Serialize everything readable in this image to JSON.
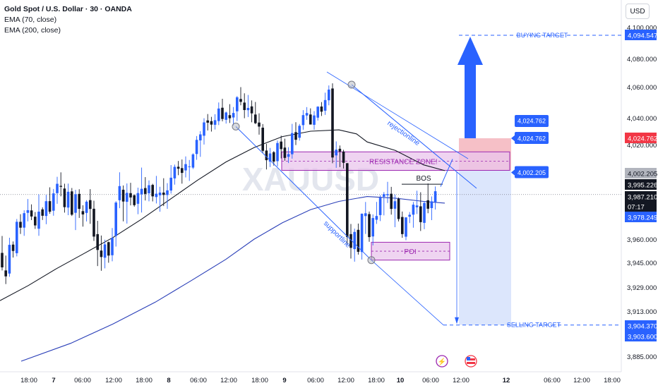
{
  "legend": {
    "symbol": "Gold Spot / U.S. Dollar · 30 · OANDA",
    "ema70": "EMA (70, close)",
    "ema200": "EMA (200, close)"
  },
  "currency_button": "USD",
  "watermark": "XAUUSD",
  "colors": {
    "up": "#2962ff",
    "down": "#131722",
    "ema70": "#131722",
    "ema200": "#2a3fb8",
    "zone_fill": "#e9c6ec",
    "zone_border": "#9c27b0",
    "annotation": "#2962ff",
    "red_box": "#f5b5bd",
    "blue_box": "#d6e2fb",
    "sell_label": "#2962ff",
    "red_label": "#f23645"
  },
  "chart_data": {
    "type": "candlestick",
    "title": "Gold Spot / U.S. Dollar · 30 · OANDA",
    "indicators": [
      "EMA (70, close)",
      "EMA (200, close)"
    ],
    "ylim": [
      3880,
      4110
    ],
    "y_ticks": [
      "4,100.000",
      "4,080.000",
      "4,060.000",
      "4,040.000",
      "4,020.000",
      "3,960.000",
      "3,945.000",
      "3,929.000",
      "3,913.000",
      "3,885.000"
    ],
    "x_ticks": [
      "18:00",
      "7",
      "06:00",
      "12:00",
      "18:00",
      "8",
      "06:00",
      "12:00",
      "18:00",
      "9",
      "06:00",
      "12:00",
      "18:00",
      "10",
      "06:00",
      "12:00",
      "12",
      "06:00",
      "12:00",
      "18:00"
    ],
    "price_labels": [
      {
        "text": "4,094.547",
        "value": 4094.547,
        "style": "blue"
      },
      {
        "text": "4,024.762",
        "value": 4024.762,
        "style": "red"
      },
      {
        "text": "4,002.205",
        "value": 4002.205,
        "style": "gray"
      },
      {
        "text": "3,995.226",
        "value": 3995.226,
        "style": "dark"
      },
      {
        "text": "3,987.210",
        "value": 3987.21,
        "style": "dark"
      },
      {
        "text": "07:17",
        "value": 3982.8,
        "style": "dark"
      },
      {
        "text": "3,978.249",
        "value": 3978.249,
        "style": "blue"
      },
      {
        "text": "3,904.370",
        "value": 3904.37,
        "style": "blue"
      },
      {
        "text": "3,903.600",
        "value": 3903.6,
        "style": "blue"
      }
    ],
    "candles": [
      [
        3951.14,
        3961.91,
        3939.8,
        3941.8
      ],
      [
        3939.8,
        3949.42,
        3930.98,
        3935.97
      ],
      [
        3937.8,
        3960.86,
        3935.71,
        3956.33
      ],
      [
        3956.49,
        3958.51,
        3948.15,
        3952.39
      ],
      [
        3950.95,
        3972.29,
        3948.91,
        3970.59
      ],
      [
        3970.56,
        3975.21,
        3963.16,
        3966.99
      ],
      [
        3967.02,
        3977.58,
        3962.03,
        3975.84
      ],
      [
        3976.03,
        3984.47,
        3970.84,
        3977.66
      ],
      [
        3977.52,
        3981.2,
        3971.63,
        3973.82
      ],
      [
        3973.69,
        3976.53,
        3966.24,
        3968.37
      ],
      [
        3966.36,
        3987.33,
        3962.03,
        3976.77
      ],
      [
        3978.14,
        3979.35,
        3971.69,
        3974.26
      ],
      [
        3974.13,
        3987.0,
        3969.11,
        3983.15
      ],
      [
        3983.17,
        3991.6,
        3975.48,
        3976.73
      ],
      [
        3977.33,
        3990.59,
        3974.29,
        3987.89
      ],
      [
        3988.03,
        3998.0,
        3981.55,
        3993.74
      ],
      [
        3992.49,
        4000.82,
        3986.12,
        3991.92
      ],
      [
        3990.86,
        3993.81,
        3976.18,
        3979.51
      ],
      [
        3979.24,
        3993.87,
        3974.62,
        3988.9
      ],
      [
        3989.13,
        3991.19,
        3974.12,
        3974.91
      ],
      [
        3976.07,
        3990.05,
        3965.54,
        3987.39
      ],
      [
        3987.6,
        3990.44,
        3972.93,
        3978.47
      ],
      [
        3977.07,
        3980.65,
        3967.64,
        3975.07
      ],
      [
        3975.99,
        3983.76,
        3970.79,
        3982.84
      ],
      [
        3983.78,
        3990.49,
        3969.34,
        3978.42
      ],
      [
        3978.53,
        3983.45,
        3958.89,
        3961.56
      ],
      [
        3963.05,
        3971.16,
        3942.64,
        3953.05
      ],
      [
        3952.65,
        3962.21,
        3939.6,
        3948.48
      ],
      [
        3948.03,
        3959.66,
        3941.16,
        3956.62
      ],
      [
        3958.06,
        3958.47,
        3944.8,
        3949.42
      ],
      [
        3949.63,
        3966.79,
        3945.76,
        3960.78
      ],
      [
        3961.93,
        3983.15,
        3955.22,
        3982.31
      ],
      [
        3983.72,
        4000.86,
        3978.89,
        3992.34
      ],
      [
        3990.13,
        3992.73,
        3970.86,
        3982.93
      ],
      [
        3982.76,
        3993.96,
        3969.49,
        3988.23
      ],
      [
        3988.05,
        3994.33,
        3980.58,
        3985.43
      ],
      [
        3986.75,
        3987.28,
        3979.8,
        3980.74
      ],
      [
        3981.56,
        3991.4,
        3975.2,
        3988.09
      ],
      [
        3987.35,
        4004.12,
        3976.24,
        3990.69
      ],
      [
        3991.14,
        3997.82,
        3983.59,
        3987.58
      ],
      [
        3987.97,
        3995.82,
        3983.08,
        3992.88
      ],
      [
        3993.06,
        3993.78,
        3983.01,
        3986.09
      ],
      [
        3985.67,
        3998.56,
        3981.77,
        3987.71
      ],
      [
        3986.76,
        3991.93,
        3976.71,
        3988.39
      ],
      [
        3988.38,
        3997.14,
        3980.17,
        3986.96
      ],
      [
        3986.92,
        3994.12,
        3978.51,
        3989.74
      ],
      [
        3989.64,
        4005.84,
        3987.81,
        3997.46
      ],
      [
        3997.04,
        4006.19,
        3993.23,
        4004.63
      ],
      [
        4004.7,
        4008.69,
        3998.99,
        4003.33
      ],
      [
        4003.75,
        4009.71,
        3993.84,
        4000.44
      ],
      [
        4002.16,
        4011.8,
        3997.64,
        4006.5
      ],
      [
        4004.93,
        4009.39,
        3995.5,
        4004.93
      ],
      [
        4004.12,
        4014.0,
        4003.13,
        4013.26
      ],
      [
        4013.51,
        4026.39,
        4009.5,
        4023.54
      ],
      [
        4023.16,
        4030.05,
        4011.55,
        4027.63
      ],
      [
        4026.63,
        4039.66,
        4020.06,
        4036.57
      ],
      [
        4038.04,
        4042.43,
        4030.56,
        4036.36
      ],
      [
        4037.52,
        4040.62,
        4029.73,
        4034.93
      ],
      [
        4034.79,
        4042.32,
        4031.25,
        4038.24
      ],
      [
        4037.56,
        4049.89,
        4034.59,
        4045.98
      ],
      [
        4046.49,
        4052.29,
        4037.35,
        4039.12
      ],
      [
        4038.51,
        4043.99,
        4035.71,
        4043.43
      ],
      [
        4041.71,
        4048.8,
        4036.15,
        4039.66
      ],
      [
        4040.22,
        4046.95,
        4034.32,
        4043.12
      ],
      [
        4044.19,
        4054.01,
        4037.61,
        4053.23
      ],
      [
        4052.12,
        4059.75,
        4048.04,
        4050.28
      ],
      [
        4049.81,
        4055.79,
        4039.69,
        4045.01
      ],
      [
        4044.91,
        4054.74,
        4040.51,
        4046.38
      ],
      [
        4047.36,
        4051.22,
        4036.65,
        4042.87
      ],
      [
        4042.11,
        4050.2,
        4035.31,
        4035.99
      ],
      [
        4036.46,
        4042.87,
        4027.45,
        4033.45
      ],
      [
        4032.64,
        4035.34,
        4014.46,
        4015.71
      ],
      [
        4015.89,
        4020.62,
        4002.83,
        4009.24
      ],
      [
        4008.24,
        4017.69,
        4004.51,
        4013.88
      ],
      [
        4014.76,
        4015.51,
        4005.51,
        4008.27
      ],
      [
        4008.57,
        4023.02,
        4004.94,
        4021.2
      ],
      [
        4022.28,
        4026.69,
        4010.47,
        4016.9
      ],
      [
        4017.96,
        4024.43,
        4008.87,
        4010.83
      ],
      [
        4011.58,
        4018.2,
        4007.27,
        4013.44
      ],
      [
        4013.35,
        4035.49,
        4010.3,
        4028.6
      ],
      [
        4029.29,
        4036.71,
        4019.68,
        4023.62
      ],
      [
        4025.12,
        4035.4,
        4022.97,
        4034.03
      ],
      [
        4034.54,
        4044.95,
        4031.09,
        4041.74
      ],
      [
        4041.46,
        4046.9,
        4038.5,
        4043.09
      ],
      [
        4042.13,
        4046.09,
        4034.95,
        4035.02
      ],
      [
        4034.77,
        4044.34,
        4031.09,
        4041.53
      ],
      [
        4040.1,
        4047.46,
        4037.96,
        4047.17
      ],
      [
        4047.27,
        4050.13,
        4041.18,
        4043.96
      ],
      [
        4044.58,
        4056.2,
        4041.88,
        4051.45
      ],
      [
        4051.29,
        4060.93,
        4048.08,
        4058.16
      ],
      [
        4058.89,
        4062.41,
        4007.13,
        4011.09
      ],
      [
        4012.55,
        4022.4,
        4003.96,
        4016.5
      ],
      [
        4017.12,
        4019.4,
        4004.45,
        4015.2
      ],
      [
        4015.16,
        4016.41,
        4003.52,
        4007.42
      ],
      [
        4007.12,
        4007.35,
        3956.2,
        3961.33
      ],
      [
        3963.08,
        3969.27,
        3947.49,
        3954.39
      ],
      [
        3953.6,
        3966.43,
        3945.49,
        3964.4
      ],
      [
        3965.69,
        3969.5,
        3950.05,
        3951.84
      ],
      [
        3951.71,
        3975.62,
        3946.83,
        3975.52
      ],
      [
        3974.07,
        3982.67,
        3963.17,
        3975.78
      ],
      [
        3975.27,
        3976.81,
        3958.3,
        3961.25
      ],
      [
        3961.64,
        3975.08,
        3955.99,
        3972.86
      ],
      [
        3971.82,
        3982.7,
        3969.3,
        3974.12
      ],
      [
        3974.67,
        3986.82,
        3971.01,
        3985.26
      ],
      [
        3985.89,
        3988.69,
        3974.49,
        3987.43
      ],
      [
        3986.75,
        3994.97,
        3982.05,
        3987.44
      ],
      [
        3987.68,
        3991.88,
        3974.96,
        3978.43
      ],
      [
        3978.56,
        3987.24,
        3967.29,
        3983.13
      ],
      [
        3984.57,
        3985.4,
        3970.81,
        3972.27
      ],
      [
        3973.51,
        3976.83,
        3960.84,
        3963.08
      ],
      [
        3961.5,
        3973.36,
        3959.29,
        3973.26
      ],
      [
        3973.7,
        3976.52,
        3969.79,
        3974.85
      ],
      [
        3974.92,
        3982.68,
        3966.98,
        3981.01
      ],
      [
        3979.42,
        3989.53,
        3975.33,
        3980.55
      ],
      [
        3980.01,
        3988.6,
        3964.98,
        3970.37
      ],
      [
        3969.93,
        3983.16,
        3966.07,
        3982.07
      ],
      [
        3983.71,
        3993.94,
        3975.8,
        3978.55
      ],
      [
        3978.91,
        3986.02,
        3971.6,
        3983.03
      ],
      [
        3982.66,
        3992.11,
        3978.05,
        3989.22
      ]
    ],
    "candle_x_start": 0,
    "candle_x_step": 5.2,
    "ema70": [
      [
        0,
        3920
      ],
      [
        40,
        3930
      ],
      [
        80,
        3941
      ],
      [
        120,
        3951
      ],
      [
        160,
        3961
      ],
      [
        200,
        3972
      ],
      [
        240,
        3984
      ],
      [
        280,
        3996
      ],
      [
        320,
        4008
      ],
      [
        360,
        4018
      ],
      [
        400,
        4026
      ],
      [
        440,
        4030
      ],
      [
        480,
        4031
      ],
      [
        505,
        4028
      ],
      [
        520,
        4022
      ],
      [
        560,
        4016
      ],
      [
        600,
        4006
      ],
      [
        630,
        4002
      ]
    ],
    "ema200": [
      [
        30,
        3877
      ],
      [
        100,
        3893
      ],
      [
        160,
        3905
      ],
      [
        220,
        3919
      ],
      [
        270,
        3933
      ],
      [
        320,
        3947
      ],
      [
        360,
        3960
      ],
      [
        400,
        3970
      ],
      [
        440,
        3978
      ],
      [
        480,
        3983
      ],
      [
        520,
        3986
      ],
      [
        560,
        3985
      ],
      [
        600,
        3983
      ],
      [
        630,
        3982
      ]
    ],
    "annotations": {
      "resistance_zone": {
        "label": "RESISTANCE ZONE!",
        "x0": 399,
        "x1": 722,
        "y_top": 4015.0,
        "y_bot": 4002.205
      },
      "poi": {
        "label": "POI",
        "x0": 526,
        "x1": 637,
        "y_top": 3958.0,
        "y_bot": 3946.5
      },
      "bos": {
        "label": "BOS",
        "x0": 569,
        "x1": 627,
        "y": 3993.5
      },
      "rejectionline": {
        "label": "rejectionline",
        "from": [
          498,
          4061.5
        ],
        "to": [
          675,
          3991.0
        ]
      },
      "supportline": {
        "label": "supportline",
        "from": [
          334,
          4033.5
        ],
        "to": [
          526,
          3946.5
        ]
      },
      "buying_target": {
        "label": "BUYING TARGET",
        "value": 4094.547,
        "from_x": 650
      },
      "selling_target": {
        "label": "SELLING TARGET",
        "value": 3904.37,
        "from_x": 628
      },
      "callout_upper": {
        "text": "4,024.762",
        "value": 4024.762
      },
      "callout_lower": {
        "text": "4,002.205",
        "value": 4002.205
      },
      "position_red": {
        "x0": 650,
        "x1": 724,
        "y_top": 4024.762,
        "y_bot": 4002.205
      },
      "position_blue": {
        "x0": 650,
        "x1": 724,
        "y_top": 4002.205,
        "y_bot": 3904.37
      }
    }
  }
}
